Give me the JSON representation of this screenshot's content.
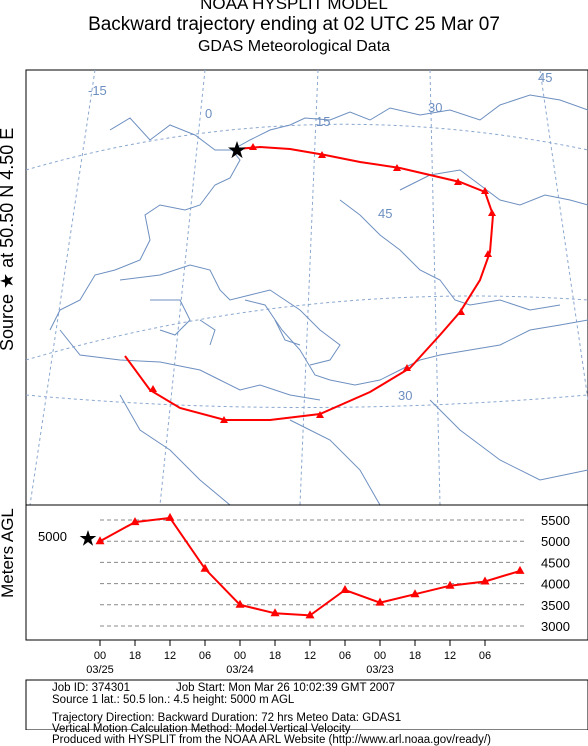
{
  "header": {
    "line1": "NOAA HYSPLIT MODEL",
    "line2": "Backward trajectory ending at 02 UTC 25 Mar 07",
    "line3": "GDAS Meteorological Data"
  },
  "source_label": "Source ★ at   50.50 N   4.50 E",
  "vertical_label": "Meters AGL",
  "map": {
    "grid_labels": [
      "-15",
      "0",
      "15",
      "30",
      "45",
      "45",
      "30"
    ],
    "source_lat": 50.5,
    "source_lon": 4.5,
    "trajectory_color": "#ff0000",
    "grid_color": "#6d8fc0"
  },
  "chart_data": {
    "type": "line",
    "ylabel": "Meters AGL",
    "source_height_label": "5000",
    "y_ticks": [
      "5500",
      "5000",
      "4500",
      "4000",
      "3500",
      "3000"
    ],
    "x_ticks": [
      "00",
      "18",
      "12",
      "06",
      "00",
      "18",
      "12",
      "06",
      "00",
      "18",
      "12",
      "06"
    ],
    "x_dates": [
      "03/25",
      "03/24",
      "03/23"
    ],
    "hours_back": [
      0,
      6,
      12,
      18,
      24,
      30,
      36,
      42,
      48,
      54,
      60,
      66,
      72
    ],
    "height_m": [
      5000,
      5450,
      5550,
      4350,
      3500,
      3300,
      3250,
      3850,
      3550,
      3750,
      3950,
      4050,
      4300
    ]
  },
  "footer": {
    "job_id": "Job ID: 374301",
    "job_start": "Job Start: Mon Mar 26 10:02:39 GMT 2007",
    "source": "Source 1      lat.: 50.5      lon.: 4.5      height: 5000 m AGL",
    "direction": "Trajectory Direction: Backward     Duration: 72 hrs     Meteo Data: GDAS1",
    "vertical": "Vertical Motion Calculation Method: Model Vertical Velocity",
    "produced": "Produced with HYSPLIT from the NOAA ARL Website (http://www.arl.noaa.gov/ready/)"
  }
}
